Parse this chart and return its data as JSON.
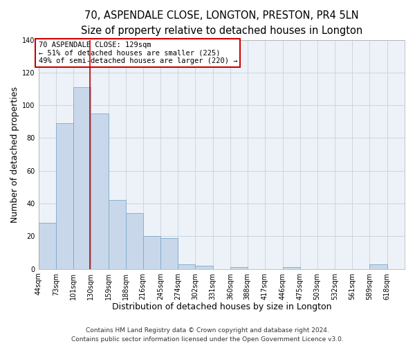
{
  "title": "70, ASPENDALE CLOSE, LONGTON, PRESTON, PR4 5LN",
  "subtitle": "Size of property relative to detached houses in Longton",
  "xlabel": "Distribution of detached houses by size in Longton",
  "ylabel": "Number of detached properties",
  "bin_labels": [
    "44sqm",
    "73sqm",
    "101sqm",
    "130sqm",
    "159sqm",
    "188sqm",
    "216sqm",
    "245sqm",
    "274sqm",
    "302sqm",
    "331sqm",
    "360sqm",
    "388sqm",
    "417sqm",
    "446sqm",
    "475sqm",
    "503sqm",
    "532sqm",
    "561sqm",
    "589sqm",
    "618sqm"
  ],
  "bar_values": [
    28,
    89,
    111,
    95,
    42,
    34,
    20,
    19,
    3,
    2,
    0,
    1,
    0,
    0,
    1,
    0,
    0,
    0,
    0,
    3,
    0
  ],
  "bar_color": "#c8d8ea",
  "bar_edge_color": "#7aaac8",
  "bin_edges": [
    44,
    73,
    101,
    130,
    159,
    188,
    216,
    245,
    274,
    302,
    331,
    360,
    388,
    417,
    446,
    475,
    503,
    532,
    561,
    589,
    618,
    647
  ],
  "vline_x": 129,
  "vline_color": "#cc0000",
  "ylim": [
    0,
    140
  ],
  "yticks": [
    0,
    20,
    40,
    60,
    80,
    100,
    120,
    140
  ],
  "annotation_text": "70 ASPENDALE CLOSE: 129sqm\n← 51% of detached houses are smaller (225)\n49% of semi-detached houses are larger (220) →",
  "annotation_box_color": "#ffffff",
  "annotation_box_edge_color": "#cc0000",
  "footer_line1": "Contains HM Land Registry data © Crown copyright and database right 2024.",
  "footer_line2": "Contains public sector information licensed under the Open Government Licence v3.0.",
  "background_color": "#ffffff",
  "plot_background_color": "#edf2f8",
  "grid_color": "#c8d0dc",
  "title_fontsize": 10.5,
  "subtitle_fontsize": 9.5,
  "axis_label_fontsize": 9,
  "tick_fontsize": 7,
  "annotation_fontsize": 7.5,
  "footer_fontsize": 6.5
}
